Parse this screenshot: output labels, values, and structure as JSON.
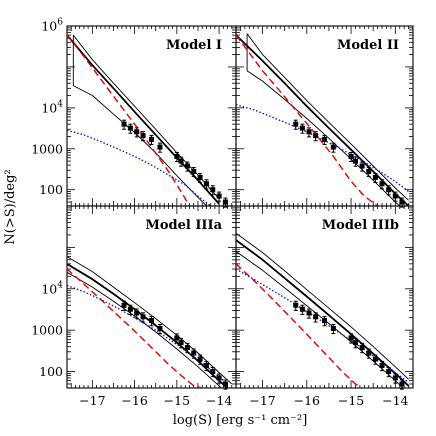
{
  "chart_data": {
    "type": "line",
    "xlabel": "log(S) [erg s⁻¹ cm⁻²]",
    "ylabel": "N(>S)/deg²",
    "xlim": [
      -17.6,
      -13.6
    ],
    "ylim": [
      40,
      1000000
    ],
    "y_scale": "log",
    "x_tick_values": [
      -17,
      -16,
      -15,
      -14
    ],
    "x_tick_labels": [
      "−17",
      "−16",
      "−15",
      "−14"
    ],
    "y_tick_values": [
      100,
      1000,
      10000,
      100000,
      1000000
    ],
    "y_tick_labels": [
      {
        "base": "100",
        "sup": ""
      },
      {
        "base": "1000",
        "sup": ""
      },
      {
        "base": "10",
        "sup": "4"
      },
      {
        "base": "10",
        "sup": "5"
      },
      {
        "base": "10",
        "sup": "6"
      }
    ],
    "observed_points": {
      "x": [
        -16.25,
        -16.1,
        -15.95,
        -15.8,
        -15.6,
        -15.4,
        -15.0,
        -14.9,
        -14.75,
        -14.6,
        -14.45,
        -14.3,
        -14.15,
        -14.0,
        -13.85
      ],
      "y": [
        4000,
        3200,
        2600,
        2100,
        1700,
        1100,
        650,
        500,
        380,
        280,
        200,
        140,
        100,
        70,
        50
      ],
      "yerr_frac": 0.25
    },
    "panels": [
      {
        "title": "Model I",
        "series": [
          {
            "style": "solid-black",
            "x": [
              -17.6,
              -17.0,
              -16.5,
              -16.0,
              -15.5,
              -15.0,
              -14.5,
              -14.0
            ],
            "y": [
              600000,
              110000,
              30000,
              8000,
              2200,
              600,
              170,
              45
            ]
          },
          {
            "style": "thin-black-upper",
            "x": [
              -17.45,
              -17.0,
              -16.5,
              -16.0,
              -15.5,
              -15.0,
              -14.5,
              -14.0
            ],
            "y": [
              600000,
              150000,
              40000,
              11000,
              3000,
              800,
              230,
              60
            ]
          },
          {
            "style": "thin-black-lower",
            "x": [
              -17.45,
              -17.45,
              -17.0,
              -16.5,
              -16.0,
              -15.5,
              -15.0,
              -14.5,
              -14.0
            ],
            "y": [
              600000,
              35000,
              20000,
              7000,
              2500,
              800,
              220,
              65,
              20
            ]
          },
          {
            "style": "dashed-red",
            "x": [
              -17.6,
              -17.2,
              -16.8,
              -16.4,
              -16.0,
              -15.6,
              -15.2,
              -14.9,
              -14.7
            ],
            "y": [
              600000,
              180000,
              50000,
              14000,
              4000,
              1100,
              280,
              90,
              40
            ]
          },
          {
            "style": "dotted-blue",
            "x": [
              -17.6,
              -17.2,
              -16.8,
              -16.4,
              -16.0,
              -15.6,
              -15.2,
              -14.8,
              -14.5,
              -14.2
            ],
            "y": [
              2800,
              2200,
              1500,
              1000,
              650,
              400,
              230,
              130,
              70,
              40
            ]
          }
        ]
      },
      {
        "title": "Model II",
        "series": [
          {
            "style": "solid-black",
            "x": [
              -17.6,
              -17.0,
              -16.5,
              -16.0,
              -15.5,
              -15.0,
              -14.5,
              -14.0,
              -13.7
            ],
            "y": [
              600000,
              140000,
              40000,
              11000,
              3200,
              950,
              280,
              80,
              40
            ]
          },
          {
            "style": "thin-black-upper",
            "x": [
              -17.35,
              -17.0,
              -16.5,
              -16.0,
              -15.5,
              -15.0,
              -14.5,
              -14.0,
              -13.7
            ],
            "y": [
              650000,
              200000,
              55000,
              15000,
              4400,
              1300,
              380,
              110,
              55
            ]
          },
          {
            "style": "thin-black-lower",
            "x": [
              -17.35,
              -17.35,
              -17.0,
              -16.5,
              -16.0,
              -15.5,
              -15.0,
              -14.5,
              -14.0,
              -13.7
            ],
            "y": [
              650000,
              80000,
              45000,
              16000,
              5500,
              1800,
              560,
              170,
              50,
              25
            ]
          },
          {
            "style": "dashed-red",
            "x": [
              -17.6,
              -17.3,
              -17.0,
              -16.6,
              -16.2,
              -15.8,
              -15.4,
              -15.0,
              -14.7,
              -14.4
            ],
            "y": [
              600000,
              220000,
              80000,
              25000,
              7500,
              2300,
              650,
              160,
              70,
              40
            ]
          },
          {
            "style": "dotted-blue",
            "x": [
              -17.6,
              -17.2,
              -16.8,
              -16.4,
              -16.0,
              -15.6,
              -15.2,
              -14.8,
              -14.4,
              -14.0,
              -13.7
            ],
            "y": [
              12000,
              9000,
              6000,
              4000,
              2600,
              1600,
              950,
              550,
              300,
              160,
              90
            ]
          }
        ]
      },
      {
        "title": "Model IIIa",
        "series": [
          {
            "style": "solid-black",
            "x": [
              -17.6,
              -17.0,
              -16.5,
              -16.0,
              -15.5,
              -15.0,
              -14.5,
              -14.0,
              -13.8
            ],
            "y": [
              40000,
              17000,
              7500,
              3200,
              1300,
              500,
              180,
              60,
              40
            ]
          },
          {
            "style": "thin-black-upper",
            "x": [
              -17.6,
              -17.0,
              -16.5,
              -16.0,
              -15.5,
              -15.0,
              -14.5,
              -14.0,
              -13.7
            ],
            "y": [
              60000,
              26000,
              11000,
              4600,
              1900,
              750,
              280,
              95,
              50
            ]
          },
          {
            "style": "thin-black-lower",
            "x": [
              -17.6,
              -17.0,
              -16.5,
              -16.0,
              -15.5,
              -15.0,
              -14.5,
              -14.0,
              -13.8
            ],
            "y": [
              25000,
              11000,
              5000,
              2200,
              900,
              350,
              130,
              45,
              30
            ]
          },
          {
            "style": "dashed-red",
            "x": [
              -17.6,
              -17.2,
              -16.8,
              -16.4,
              -16.0,
              -15.6,
              -15.2,
              -14.9,
              -14.6,
              -14.4
            ],
            "y": [
              30000,
              13000,
              5500,
              2300,
              950,
              380,
              150,
              80,
              45,
              40
            ]
          },
          {
            "style": "dotted-blue",
            "x": [
              -17.6,
              -17.2,
              -16.8,
              -16.4,
              -16.0,
              -15.6,
              -15.2,
              -14.8,
              -14.4,
              -14.0,
              -13.8
            ],
            "y": [
              12000,
              8500,
              5500,
              3400,
              2000,
              1150,
              620,
              320,
              160,
              75,
              50
            ]
          }
        ]
      },
      {
        "title": "Model IIIb",
        "series": [
          {
            "style": "solid-black",
            "x": [
              -17.6,
              -17.0,
              -16.5,
              -16.0,
              -15.5,
              -15.0,
              -14.5,
              -14.0,
              -13.7
            ],
            "y": [
              150000,
              50000,
              18000,
              6500,
              2300,
              800,
              270,
              90,
              45
            ]
          },
          {
            "style": "thin-black-upper",
            "x": [
              -17.6,
              -17.0,
              -16.5,
              -16.0,
              -15.5,
              -15.0,
              -14.5,
              -14.0,
              -13.7
            ],
            "y": [
              220000,
              75000,
              27000,
              9500,
              3400,
              1200,
              400,
              130,
              65
            ]
          },
          {
            "style": "thin-black-lower",
            "x": [
              -17.6,
              -17.0,
              -16.5,
              -16.0,
              -15.5,
              -15.0,
              -14.5,
              -14.0,
              -13.7
            ],
            "y": [
              80000,
              28000,
              10500,
              3900,
              1450,
              520,
              180,
              60,
              30
            ]
          },
          {
            "style": "dashed-red",
            "x": [
              -17.6,
              -17.2,
              -16.8,
              -16.4,
              -16.0,
              -15.6,
              -15.2,
              -14.9,
              -14.75
            ],
            "y": [
              40000,
              16000,
              6000,
              2200,
              800,
              280,
              100,
              50,
              40
            ]
          },
          {
            "style": "dotted-blue",
            "x": [
              -17.6,
              -17.2,
              -16.8,
              -16.4,
              -16.0,
              -15.6,
              -15.2,
              -14.8,
              -14.4,
              -14.0,
              -13.7
            ],
            "y": [
              30000,
              17000,
              9500,
              5200,
              2800,
              1500,
              780,
              400,
              200,
              95,
              55
            ]
          }
        ]
      }
    ]
  }
}
